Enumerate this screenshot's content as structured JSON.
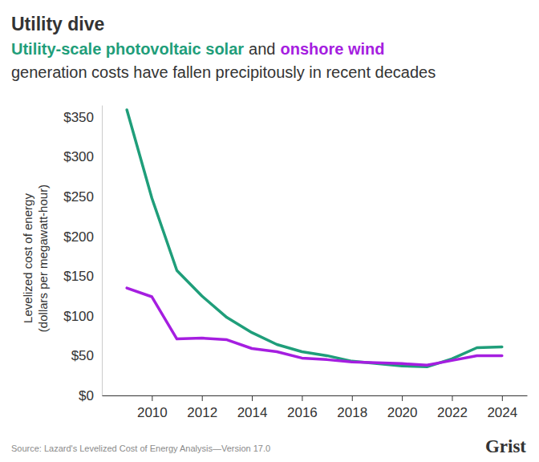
{
  "chart_data": {
    "type": "line",
    "title": "Utility dive",
    "subtitle": [
      "and",
      "generation costs have fallen precipitously in recent decades"
    ],
    "y_label": [
      "Levelized cost of energy",
      "(dollars per megawatt-hour)"
    ],
    "source": "Source: Lazard's Levelized Cost of Energy Analysis—Version 17.0",
    "credit": "Grist",
    "x": [
      2009,
      2010,
      2011,
      2012,
      2013,
      2014,
      2015,
      2016,
      2017,
      2018,
      2019,
      2020,
      2021,
      2022,
      2023,
      2024
    ],
    "series": [
      {
        "name": "Utility-scale photovoltaic solar",
        "color": "#1f9e7a",
        "values": [
          359,
          248,
          157,
          125,
          98,
          79,
          64,
          55,
          50,
          43,
          40,
          37,
          36,
          46,
          60,
          61
        ]
      },
      {
        "name": "onshore wind",
        "color": "#a51ee0",
        "values": [
          135,
          124,
          71,
          72,
          70,
          59,
          55,
          47,
          45,
          42,
          41,
          40,
          38,
          44,
          50,
          50
        ]
      }
    ],
    "xlim": [
      2008,
      2025
    ],
    "xticks": [
      2010,
      2012,
      2014,
      2016,
      2018,
      2020,
      2022,
      2024
    ],
    "ylim": [
      0,
      365
    ],
    "yticks": [
      {
        "value": 0,
        "label": "$0"
      },
      {
        "value": 50,
        "label": "$50"
      },
      {
        "value": 100,
        "label": "$100"
      },
      {
        "value": 150,
        "label": "$150"
      },
      {
        "value": 200,
        "label": "$200"
      },
      {
        "value": 250,
        "label": "$250"
      },
      {
        "value": 300,
        "label": "$300"
      },
      {
        "value": 350,
        "label": "$350"
      }
    ],
    "grid": false
  }
}
